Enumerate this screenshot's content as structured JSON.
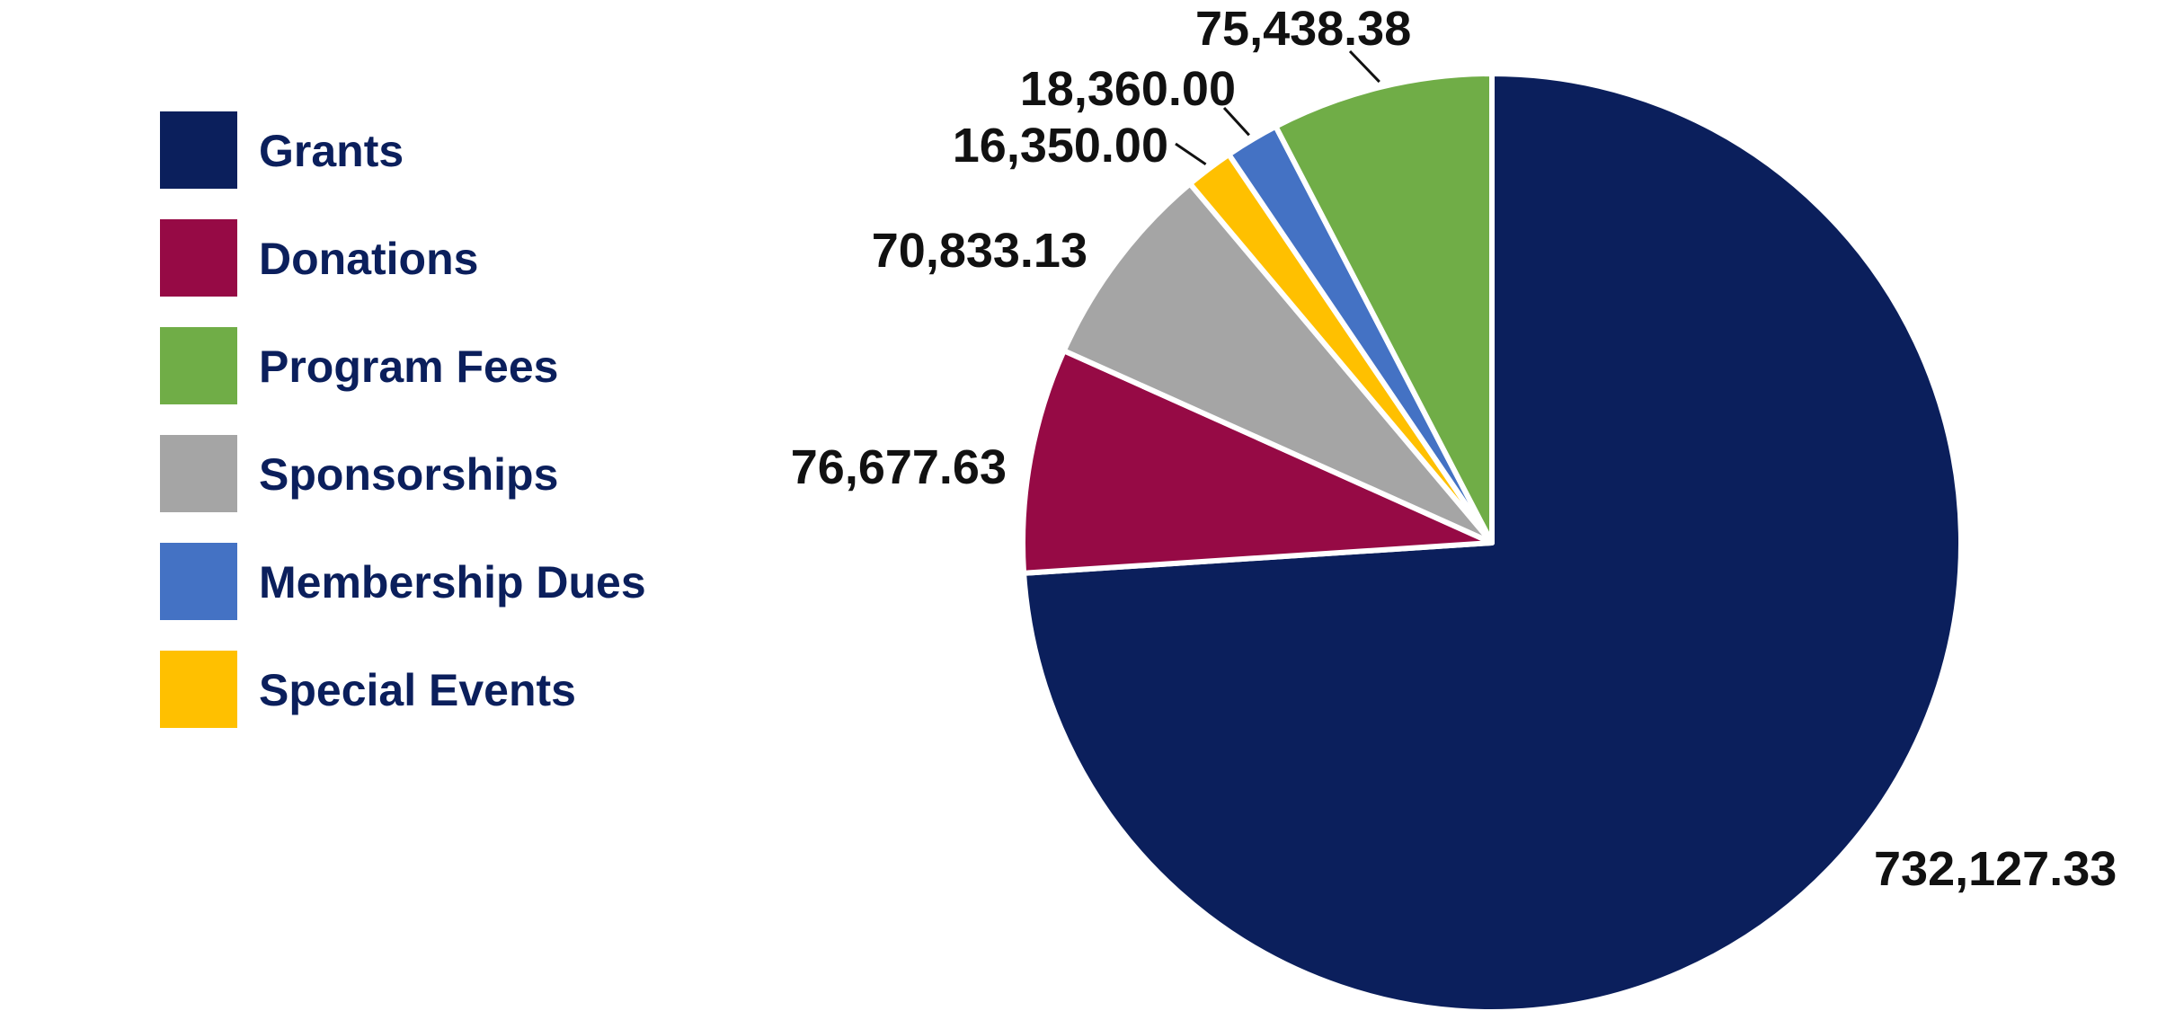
{
  "chart_data": {
    "type": "pie",
    "title": "",
    "start_angle_deg": 0,
    "direction": "clockwise",
    "legend_position": "left",
    "slices": [
      {
        "label": "Grants",
        "value": 732127.33,
        "display": "732,127.33",
        "color": "#0b1f5c"
      },
      {
        "label": "Donations",
        "value": 76677.63,
        "display": "76,677.63",
        "color": "#960a45"
      },
      {
        "label": "Sponsorships",
        "value": 70833.13,
        "display": "70,833.13",
        "color": "#a5a5a5"
      },
      {
        "label": "Special Events",
        "value": 16350.0,
        "display": "16,350.00",
        "color": "#ffc000"
      },
      {
        "label": "Membership Dues",
        "value": 18360.0,
        "display": "18,360.00",
        "color": "#4472c4"
      },
      {
        "label": "Program Fees",
        "value": 75438.38,
        "display": "75,438.38",
        "color": "#70ad47"
      }
    ],
    "legend": [
      "Grants",
      "Donations",
      "Program Fees",
      "Sponsorships",
      "Membership Dues",
      "Special Events"
    ]
  }
}
